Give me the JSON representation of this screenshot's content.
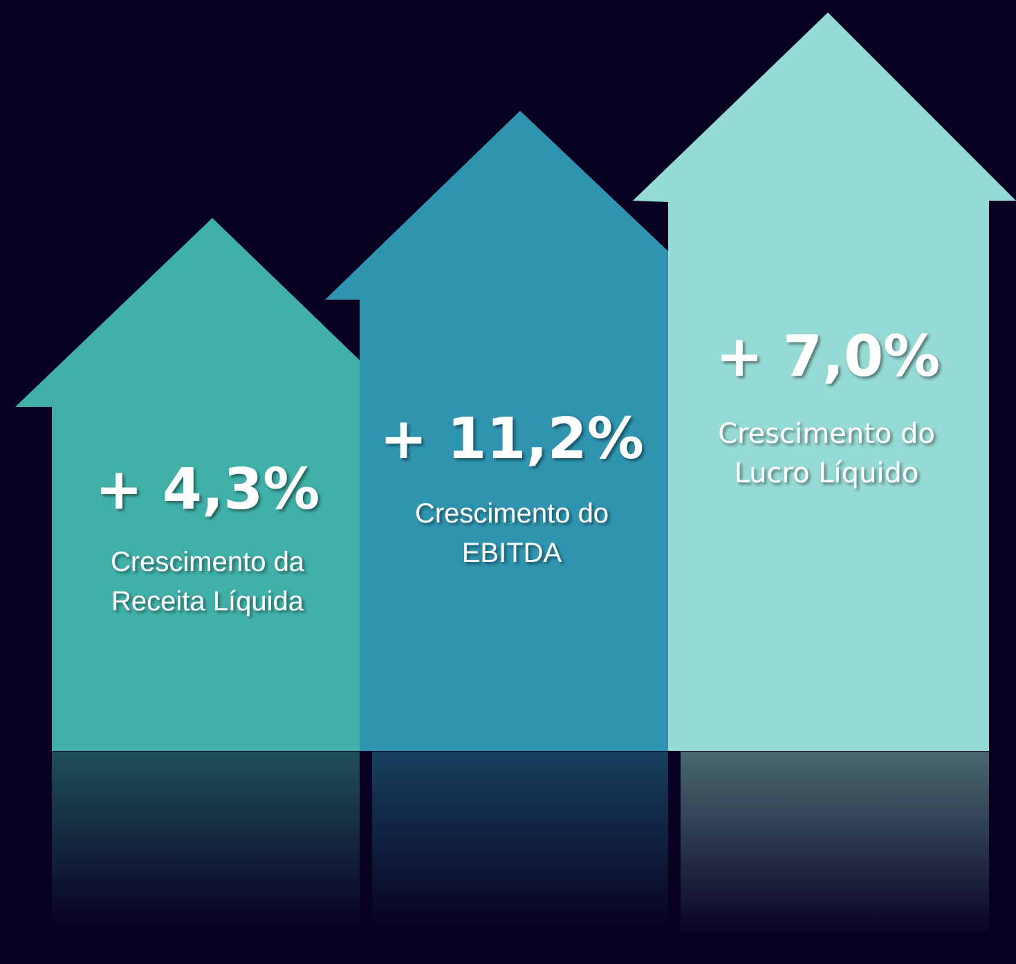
{
  "items": [
    {
      "value": "+ 4,3%",
      "label": [
        "Crescimento da",
        "Receita Líquida"
      ]
    },
    {
      "value": "+ 11,2%",
      "label": [
        "Crescimento do",
        "EBITDA"
      ]
    },
    {
      "value": "+ 7,0%",
      "label": [
        "Crescimento do",
        "Lucro Líquido"
      ]
    }
  ]
}
